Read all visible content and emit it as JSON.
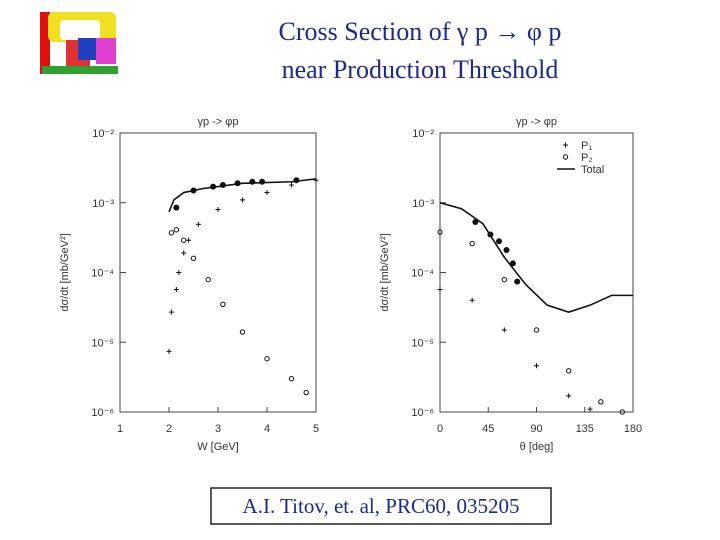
{
  "slide": {
    "title_line1": "Cross Section of γ p → φ p",
    "title_line2": "near Production Threshold",
    "citation": "A.I. Titov, et. al, PRC60, 035205"
  },
  "chart_data": [
    {
      "type": "scatter",
      "title": "γp -> φp",
      "xlabel": "W [GeV]",
      "ylabel": "dσ/dt [mb/GeV²]",
      "log_y": true,
      "xlim": [
        1,
        5
      ],
      "xticks": [
        1,
        2,
        3,
        4,
        5
      ],
      "ylim": [
        1e-06,
        0.01
      ],
      "yticks": [
        {
          "value": 0.01,
          "label": "10⁻²"
        },
        {
          "value": 0.001,
          "label": "10⁻³"
        },
        {
          "value": 0.0001,
          "label": "10⁻⁴"
        },
        {
          "value": 1e-05,
          "label": "10⁻⁵"
        },
        {
          "value": 1e-06,
          "label": "10⁻⁶"
        }
      ],
      "series": [
        {
          "marker": "line",
          "color": "#111111",
          "x": [
            2.0,
            2.1,
            2.3,
            2.7,
            3.5,
            4.5,
            5.0
          ],
          "values": [
            0.00074,
            0.0011,
            0.0014,
            0.0016,
            0.0019,
            0.002,
            0.0022
          ]
        },
        {
          "marker": "filled-circle",
          "color": "#111111",
          "x": [
            2.15,
            2.5,
            2.9,
            3.1,
            3.4,
            3.7,
            3.9,
            4.6
          ],
          "values": [
            0.00085,
            0.0015,
            0.0017,
            0.0018,
            0.0019,
            0.002,
            0.002,
            0.0021
          ]
        },
        {
          "marker": "open-circle",
          "color": "#111111",
          "x": [
            2.05,
            2.15,
            2.3,
            2.5,
            2.8,
            3.1,
            3.5,
            4.0,
            4.5,
            4.8
          ],
          "values": [
            0.00037,
            0.00041,
            0.00029,
            0.00016,
            7.9e-05,
            3.5e-05,
            1.4e-05,
            5.8e-06,
            3e-06,
            1.9e-06
          ]
        },
        {
          "marker": "plus",
          "color": "#111111",
          "x": [
            2.0,
            2.05,
            2.15,
            2.2,
            2.3,
            2.4,
            2.6,
            3.0,
            3.5,
            4.0,
            4.5,
            5.0
          ],
          "values": [
            7.4e-06,
            2.7e-05,
            5.7e-05,
            0.0001,
            0.00019,
            0.00029,
            0.00049,
            0.0008,
            0.0011,
            0.0014,
            0.0018,
            0.0021
          ]
        }
      ]
    },
    {
      "type": "scatter",
      "title": "γp -> φp",
      "xlabel": "θ [deg]",
      "ylabel": "dσ/dt [mb/GeV²]",
      "log_y": true,
      "xlim": [
        0,
        180
      ],
      "xticks": [
        0,
        45,
        90,
        135,
        180
      ],
      "ylim": [
        1e-06,
        0.01
      ],
      "yticks": [
        {
          "value": 0.01,
          "label": "10⁻²"
        },
        {
          "value": 0.001,
          "label": "10⁻³"
        },
        {
          "value": 0.0001,
          "label": "10⁻⁴"
        },
        {
          "value": 1e-05,
          "label": "10⁻⁵"
        },
        {
          "value": 1e-06,
          "label": "10⁻⁶"
        }
      ],
      "legend": "upper right",
      "series": [
        {
          "name": "P₁",
          "marker": "plus",
          "color": "#111111",
          "x": [
            0,
            30,
            60,
            90,
            120,
            140
          ],
          "values": [
            5.7e-05,
            4e-05,
            1.5e-05,
            4.6e-06,
            1.7e-06,
            1.1e-06
          ]
        },
        {
          "name": "P₂",
          "marker": "open-circle",
          "color": "#111111",
          "x": [
            0,
            30,
            60,
            90,
            120,
            150,
            170
          ],
          "values": [
            0.00038,
            0.00026,
            7.9e-05,
            1.5e-05,
            3.9e-06,
            1.4e-06,
            1e-06
          ]
        },
        {
          "name": "Total",
          "marker": "line",
          "color": "#111111",
          "x": [
            0,
            20,
            40,
            60,
            80,
            100,
            120,
            140,
            160,
            180
          ],
          "values": [
            0.001,
            0.00082,
            0.0005,
            0.000165,
            6.7e-05,
            3.4e-05,
            2.7e-05,
            3.4e-05,
            4.7e-05,
            4.7e-05
          ]
        },
        {
          "marker": "filled-circle",
          "color": "#111111",
          "x": [
            33,
            47,
            55,
            62,
            68,
            72
          ],
          "values": [
            0.00053,
            0.00035,
            0.00028,
            0.00021,
            0.000135,
            7.4e-05
          ]
        }
      ]
    }
  ]
}
